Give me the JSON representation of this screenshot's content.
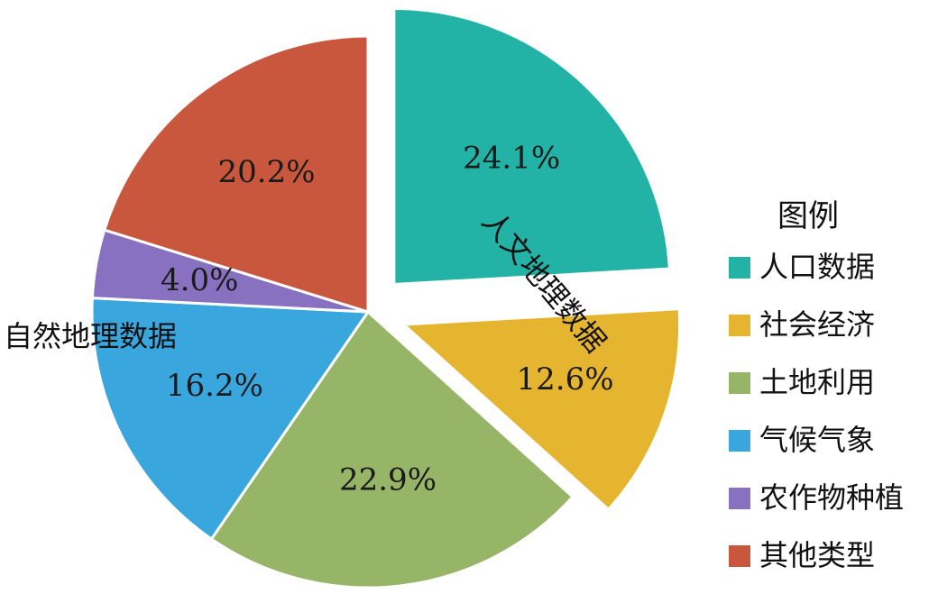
{
  "chart_data": {
    "type": "pie",
    "title": "",
    "legend": {
      "title": "图例",
      "position": "right"
    },
    "slices": [
      {
        "label": "人口数据",
        "value": 24.1,
        "display": "24.1%",
        "color": "#22b2a6",
        "exploded": true
      },
      {
        "label": "社会经济",
        "value": 12.6,
        "display": "12.6%",
        "color": "#e6b530",
        "exploded": true
      },
      {
        "label": "土地利用",
        "value": 22.9,
        "display": "22.9%",
        "color": "#96b566",
        "exploded": false
      },
      {
        "label": "气候气象",
        "value": 16.2,
        "display": "16.2%",
        "color": "#3aa6de",
        "exploded": false
      },
      {
        "label": "农作物种植",
        "value": 4.0,
        "display": "4.0%",
        "color": "#8771c0",
        "exploded": false
      },
      {
        "label": "其他类型",
        "value": 20.2,
        "display": "20.2%",
        "color": "#c9573e",
        "exploded": false
      }
    ],
    "group_labels": [
      {
        "text": "人文地理数据"
      },
      {
        "text": "自然地理数据"
      }
    ]
  }
}
